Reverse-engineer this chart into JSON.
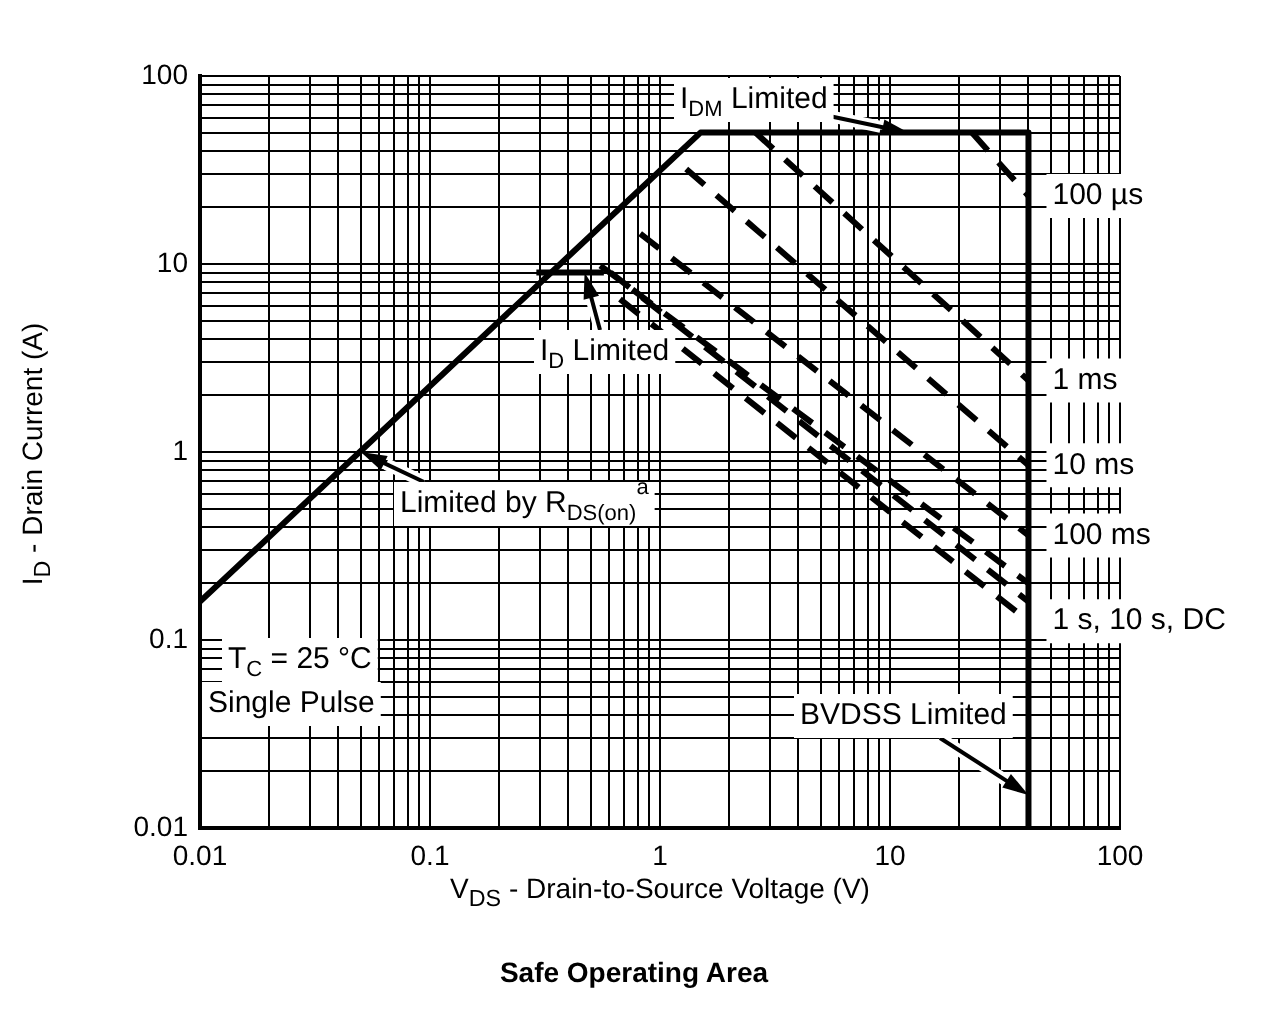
{
  "chart_data": {
    "type": "line",
    "title": "Safe Operating Area",
    "xlabel": "V$_{DS}$ - Drain-to-Source Voltage (V)",
    "ylabel": "I$_{D}$ - Drain Current (A)",
    "log": "xy",
    "grid": true,
    "legend": false,
    "marker": "none",
    "xlim": [
      0.01,
      100
    ],
    "ylim": [
      0.01,
      100
    ],
    "xticks": [
      0.01,
      {
        "value": 0.02,
        "label": null
      },
      {
        "value": 0.03,
        "label": null
      },
      {
        "value": 0.04,
        "label": null
      },
      {
        "value": 0.05,
        "label": null
      },
      {
        "value": 0.06,
        "label": null
      },
      {
        "value": 0.07,
        "label": null
      },
      {
        "value": 0.08,
        "label": null
      },
      {
        "value": 0.09,
        "label": null
      },
      0.1,
      {
        "value": 0.2,
        "label": null
      },
      {
        "value": 0.3,
        "label": null
      },
      {
        "value": 0.4,
        "label": null
      },
      {
        "value": 0.5,
        "label": null
      },
      {
        "value": 0.6,
        "label": null
      },
      {
        "value": 0.7,
        "label": null
      },
      {
        "value": 0.8,
        "label": null
      },
      {
        "value": 0.9,
        "label": null
      },
      1,
      {
        "value": 2,
        "label": null
      },
      {
        "value": 3,
        "label": null
      },
      {
        "value": 4,
        "label": null
      },
      {
        "value": 5,
        "label": null
      },
      {
        "value": 6,
        "label": null
      },
      {
        "value": 7,
        "label": null
      },
      {
        "value": 8,
        "label": null
      },
      {
        "value": 9,
        "label": null
      },
      10,
      {
        "value": 20,
        "label": null
      },
      {
        "value": 30,
        "label": null
      },
      {
        "value": 40,
        "label": null
      },
      {
        "value": 50,
        "label": null
      },
      {
        "value": 60,
        "label": null
      },
      {
        "value": 70,
        "label": null
      },
      {
        "value": 80,
        "label": null
      },
      {
        "value": 90,
        "label": null
      },
      100
    ],
    "yticks": [
      0.01,
      {
        "value": 0.02,
        "label": null
      },
      {
        "value": 0.03,
        "label": null
      },
      {
        "value": 0.04,
        "label": null
      },
      {
        "value": 0.05,
        "label": null
      },
      {
        "value": 0.06,
        "label": null
      },
      {
        "value": 0.07,
        "label": null
      },
      {
        "value": 0.08,
        "label": null
      },
      {
        "value": 0.09,
        "label": null
      },
      0.1,
      {
        "value": 0.2,
        "label": null
      },
      {
        "value": 0.3,
        "label": null
      },
      {
        "value": 0.4,
        "label": null
      },
      {
        "value": 0.5,
        "label": null
      },
      {
        "value": 0.6,
        "label": null
      },
      {
        "value": 0.7,
        "label": null
      },
      {
        "value": 0.8,
        "label": null
      },
      {
        "value": 0.9,
        "label": null
      },
      1,
      {
        "value": 2,
        "label": null
      },
      {
        "value": 3,
        "label": null
      },
      {
        "value": 4,
        "label": null
      },
      {
        "value": 5,
        "label": null
      },
      {
        "value": 6,
        "label": null
      },
      {
        "value": 7,
        "label": null
      },
      {
        "value": 8,
        "label": null
      },
      {
        "value": 9,
        "label": null
      },
      10,
      {
        "value": 20,
        "label": null
      },
      {
        "value": 30,
        "label": null
      },
      {
        "value": 40,
        "label": null
      },
      {
        "value": 50,
        "label": null
      },
      {
        "value": 60,
        "label": null
      },
      {
        "value": 70,
        "label": null
      },
      {
        "value": 80,
        "label": null
      },
      {
        "value": 90,
        "label": null
      },
      100
    ],
    "series": [
      {
        "color": "#000000",
        "line_style": "solid",
        "x": [
          0.01,
          1.5,
          40,
          40
        ],
        "values": [
          0.16,
          50,
          50,
          0.01
        ]
      },
      {
        "color": "#000000",
        "line_style": "solid",
        "x": [
          0.29,
          0.57
        ],
        "values": [
          9,
          9
        ]
      },
      {
        "name": "100 µs",
        "color": "#000000",
        "line_style": "dashed",
        "x": [
          22.7,
          40
        ],
        "values": [
          50,
          23
        ]
      },
      {
        "name": "1 ms",
        "color": "#000000",
        "line_style": "dashed",
        "x": [
          2.6,
          40
        ],
        "values": [
          50,
          2.4
        ]
      },
      {
        "name": "10 ms",
        "color": "#000000",
        "line_style": "dashed",
        "x": [
          1.3,
          40
        ],
        "values": [
          32,
          0.85
        ]
      },
      {
        "name": "100 ms",
        "color": "#000000",
        "line_style": "dashed",
        "x": [
          0.82,
          40
        ],
        "values": [
          14.5,
          0.36
        ]
      },
      {
        "name": "1 s, 10 s, DC",
        "color": "#000000",
        "line_style": "dashed",
        "x": [
          0.55,
          40,
          null,
          0.61,
          40,
          null,
          0.67,
          40
        ],
        "values": [
          9.8,
          0.2,
          null,
          9,
          0.16,
          null,
          6.5,
          0.126
        ]
      }
    ],
    "annotations": [
      {
        "text": "I$_{DM}$ Limited",
        "x": 12,
        "y": 50
      },
      {
        "text": "Limited by R$_{DS(on)}$$^{a}$",
        "x": 0.05,
        "y": 1
      },
      {
        "text": "I$_{D}$ Limited",
        "x": 0.47,
        "y": 9
      },
      {
        "text": "BVDSS Limited",
        "x": 40,
        "y": 0.015
      },
      "T$_{C}$ = 25 °C",
      "Single Pulse"
    ]
  }
}
